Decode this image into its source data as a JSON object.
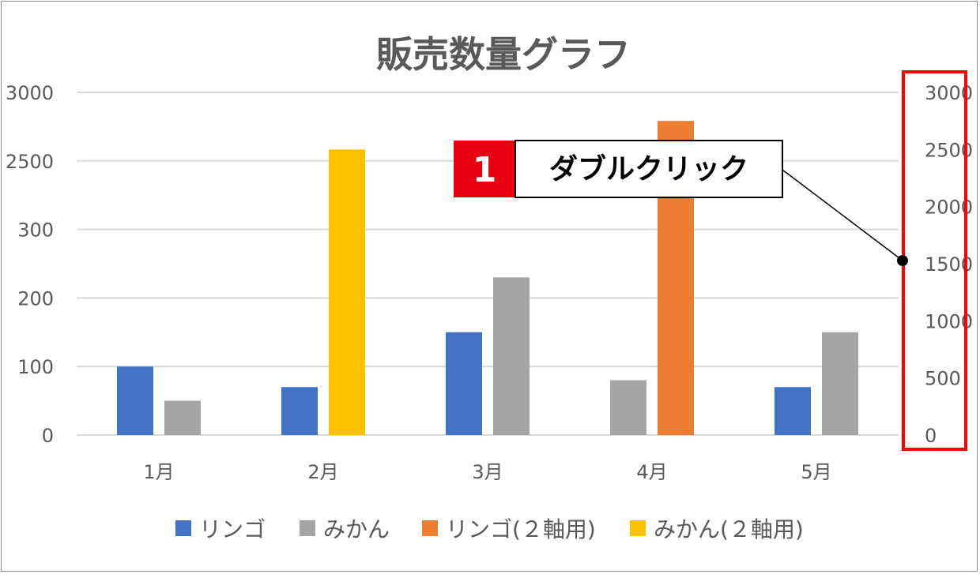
{
  "chart_data": {
    "type": "bar",
    "title": "販売数量グラフ",
    "categories": [
      "1月",
      "2月",
      "3月",
      "4月",
      "5月"
    ],
    "series": [
      {
        "name": "リンゴ",
        "axis": "primary",
        "color": "#4472C4",
        "values": [
          100,
          70,
          150,
          null,
          70
        ]
      },
      {
        "name": "みかん",
        "axis": "primary",
        "color": "#A5A5A5",
        "values": [
          50,
          null,
          230,
          80,
          150
        ]
      },
      {
        "name": "リンゴ(２軸用)",
        "axis": "secondary",
        "color": "#ED7D31",
        "values": [
          null,
          null,
          null,
          2750,
          null
        ]
      },
      {
        "name": "みかん(２軸用)",
        "axis": "secondary",
        "color": "#FFC000",
        "values": [
          null,
          2500,
          null,
          null,
          null
        ]
      }
    ],
    "primary_axis": {
      "ticks": [
        0,
        100,
        200,
        300,
        2500,
        3000
      ]
    },
    "secondary_axis": {
      "range": [
        0,
        3000
      ],
      "ticks": [
        0,
        500,
        1000,
        1500,
        2000,
        2500,
        3000
      ]
    },
    "legend_position": "bottom",
    "grid": true
  },
  "annotation": {
    "step_number": "1",
    "text": "ダブルクリック",
    "highlight_color": "#FF0000",
    "badge_color": "#E60012"
  }
}
